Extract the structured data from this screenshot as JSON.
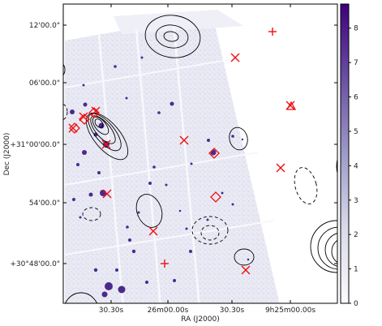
{
  "chart_data": {
    "type": "image",
    "xlabel": "RA (J2000)",
    "ylabel": "Dec (J2000)",
    "xticks": [
      "30.30s",
      "26m00.00s",
      "30.30s",
      "9h25m00.00s"
    ],
    "yticks": [
      "12'00.0\"",
      "06'00.0\"",
      "+31°00'00.0\"",
      "54'00.0\"",
      "+30°48'00.0\""
    ],
    "colorbar": {
      "min": 0,
      "max": 8.7,
      "ticks": [
        0,
        1,
        2,
        3,
        4,
        5,
        6,
        7,
        8
      ],
      "tick_labels": [
        "0",
        "1",
        "2",
        "3",
        "4",
        "5",
        "6",
        "7",
        "8"
      ],
      "cmap": "Purples"
    },
    "markers": {
      "x_crosses": 11,
      "plus_signs": 2,
      "diamonds": 5,
      "triangles": 1,
      "color": "#ee1111"
    },
    "contours": {
      "solid_color": "#000000",
      "dashed_color": "#000000"
    }
  }
}
